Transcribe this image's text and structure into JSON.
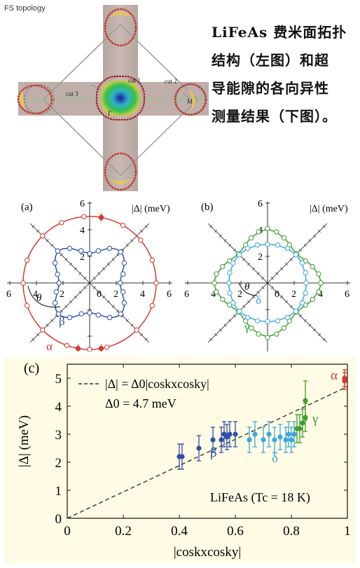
{
  "top": {
    "fs_title": "FS topology",
    "cut_labels": [
      "cut 1",
      "cut 2",
      "cut 3"
    ],
    "point_labels": [
      "Γ",
      "M"
    ],
    "caption_lines": [
      "LiFeAs 费米面拓扑",
      "结构（左图）和超",
      "导能隙的各向异性",
      "测量结果（下图）。"
    ]
  },
  "colors": {
    "alpha": "#d63a2f",
    "beta": "#2f4fa8",
    "delta": "#3aa7e0",
    "gamma": "#3f9e2f",
    "guide": "#333333"
  },
  "chart_data": [
    {
      "type": "polar",
      "panel": "(a)",
      "radial_label": "|Δ| (meV)",
      "ticks": [
        2,
        4,
        6
      ],
      "angle_label": "θ",
      "series": [
        {
          "name": "α",
          "fit_radius": 5,
          "points": [
            [
              95,
              5
            ],
            [
              80,
              5
            ],
            [
              60,
              5
            ],
            [
              40,
              5
            ],
            [
              20,
              5
            ],
            [
              0,
              5
            ],
            [
              -20,
              5
            ],
            [
              -45,
              5
            ],
            [
              -75,
              5
            ],
            [
              -90,
              5
            ],
            [
              -110,
              5
            ],
            [
              -135,
              5
            ],
            [
              -160,
              5
            ],
            [
              180,
              5
            ],
            [
              160,
              5
            ],
            [
              135,
              5
            ],
            [
              115,
              5
            ]
          ],
          "filled_angles": [
            -80,
            -100,
            80
          ]
        },
        {
          "name": "β",
          "fit_shape": [
            [
              0,
              2.3
            ],
            [
              30,
              3.0
            ],
            [
              45,
              3.3
            ],
            [
              60,
              3.0
            ],
            [
              90,
              2.25
            ],
            [
              120,
              3.0
            ],
            [
              135,
              3.35
            ],
            [
              150,
              3.0
            ],
            [
              180,
              2.3
            ],
            [
              210,
              3.0
            ],
            [
              225,
              3.3
            ],
            [
              240,
              3.0
            ],
            [
              270,
              2.25
            ],
            [
              300,
              3.0
            ],
            [
              315,
              3.3
            ],
            [
              330,
              3.0
            ]
          ],
          "points": [
            [
              0,
              2.3
            ],
            [
              15,
              2.6
            ],
            [
              30,
              3.0
            ],
            [
              45,
              3.3
            ],
            [
              60,
              3.0
            ],
            [
              75,
              2.5
            ],
            [
              90,
              2.2
            ],
            [
              105,
              2.5
            ],
            [
              120,
              3.0
            ],
            [
              135,
              3.4
            ],
            [
              150,
              3.0
            ],
            [
              165,
              2.5
            ],
            [
              180,
              2.3
            ],
            [
              195,
              2.6
            ],
            [
              210,
              3.0
            ],
            [
              225,
              3.3
            ],
            [
              240,
              3.0
            ],
            [
              255,
              2.4
            ],
            [
              270,
              2.25
            ],
            [
              285,
              2.5
            ],
            [
              300,
              3.0
            ],
            [
              315,
              3.3
            ],
            [
              330,
              3.0
            ],
            [
              345,
              2.6
            ]
          ]
        }
      ]
    },
    {
      "type": "polar",
      "panel": "(b)",
      "radial_label": "|Δ| (meV)",
      "ticks": [
        2,
        4,
        6
      ],
      "angle_label": "θ",
      "series": [
        {
          "name": "γ",
          "fit_shape": [
            [
              0,
              4.0
            ],
            [
              20,
              3.6
            ],
            [
              45,
              3.1
            ],
            [
              70,
              3.6
            ],
            [
              90,
              4.0
            ],
            [
              110,
              3.6
            ],
            [
              135,
              3.1
            ],
            [
              160,
              3.6
            ],
            [
              180,
              4.0
            ],
            [
              200,
              3.6
            ],
            [
              225,
              3.1
            ],
            [
              250,
              3.6
            ],
            [
              270,
              4.0
            ],
            [
              290,
              3.6
            ],
            [
              315,
              3.1
            ],
            [
              340,
              3.6
            ]
          ],
          "points": [
            [
              0,
              4.0
            ],
            [
              10,
              3.9
            ],
            [
              20,
              3.6
            ],
            [
              30,
              3.3
            ],
            [
              45,
              3.1
            ],
            [
              60,
              3.3
            ],
            [
              70,
              3.6
            ],
            [
              80,
              3.9
            ],
            [
              90,
              4.1
            ],
            [
              100,
              3.9
            ],
            [
              110,
              3.6
            ],
            [
              120,
              3.3
            ],
            [
              135,
              3.1
            ],
            [
              150,
              3.3
            ],
            [
              160,
              3.6
            ],
            [
              170,
              3.9
            ],
            [
              180,
              4.0
            ],
            [
              190,
              3.9
            ],
            [
              200,
              3.6
            ],
            [
              210,
              3.3
            ],
            [
              225,
              3.1
            ],
            [
              240,
              3.3
            ],
            [
              250,
              3.6
            ],
            [
              260,
              3.9
            ],
            [
              270,
              4.1
            ],
            [
              280,
              3.9
            ],
            [
              290,
              3.6
            ],
            [
              300,
              3.3
            ],
            [
              315,
              3.1
            ],
            [
              330,
              3.3
            ],
            [
              340,
              3.6
            ],
            [
              350,
              3.9
            ]
          ]
        },
        {
          "name": "δ",
          "fit_shape": [
            [
              0,
              2.9
            ],
            [
              45,
              3.0
            ],
            [
              90,
              2.9
            ],
            [
              135,
              3.0
            ],
            [
              180,
              2.9
            ],
            [
              225,
              3.0
            ],
            [
              270,
              2.9
            ],
            [
              315,
              3.0
            ]
          ],
          "points": [
            [
              0,
              2.9
            ],
            [
              15,
              2.95
            ],
            [
              30,
              3.0
            ],
            [
              45,
              3.0
            ],
            [
              60,
              3.0
            ],
            [
              75,
              2.95
            ],
            [
              90,
              2.9
            ],
            [
              105,
              2.95
            ],
            [
              120,
              3.0
            ],
            [
              135,
              3.0
            ],
            [
              150,
              3.0
            ],
            [
              165,
              2.95
            ],
            [
              180,
              2.9
            ],
            [
              195,
              2.95
            ],
            [
              210,
              3.0
            ],
            [
              225,
              3.0
            ],
            [
              240,
              3.0
            ],
            [
              255,
              2.95
            ],
            [
              270,
              2.9
            ],
            [
              285,
              2.95
            ],
            [
              300,
              3.0
            ],
            [
              315,
              3.0
            ],
            [
              330,
              3.0
            ],
            [
              345,
              2.95
            ]
          ]
        }
      ]
    },
    {
      "type": "scatter",
      "panel": "(c)",
      "xlabel": "|coskxcosky|",
      "ylabel": "|Δ| (meV)",
      "xlim": [
        0,
        1
      ],
      "ylim": [
        0,
        5.5
      ],
      "x_ticks": [
        0,
        0.2,
        0.4,
        0.6,
        0.8,
        1
      ],
      "y_ticks": [
        0,
        1,
        2,
        3,
        4,
        5
      ],
      "legend_line1": "|Δ| = Δ0|coskxcosky|",
      "legend_line2": "Δ0 = 4.7 meV",
      "annotation": "LiFeAs (Tc = 18 K)",
      "fit": {
        "slope": 4.7
      },
      "series": [
        {
          "name": "β",
          "points": [
            [
              0.4,
              2.2,
              0.45
            ],
            [
              0.41,
              2.2,
              0.45
            ],
            [
              0.47,
              2.5,
              0.45
            ],
            [
              0.52,
              2.8,
              0.45
            ],
            [
              0.55,
              2.8,
              0.45
            ],
            [
              0.56,
              3.0,
              0.45
            ],
            [
              0.57,
              2.9,
              0.45
            ],
            [
              0.58,
              3.0,
              0.45
            ],
            [
              0.6,
              3.0,
              0.45
            ]
          ]
        },
        {
          "name": "δ",
          "points": [
            [
              0.65,
              2.8,
              0.45
            ],
            [
              0.67,
              3.0,
              0.45
            ],
            [
              0.7,
              2.8,
              0.45
            ],
            [
              0.72,
              3.0,
              0.45
            ],
            [
              0.74,
              2.8,
              0.45
            ],
            [
              0.76,
              2.9,
              0.45
            ],
            [
              0.78,
              2.8,
              0.45
            ],
            [
              0.79,
              3.0,
              0.45
            ],
            [
              0.8,
              2.8,
              0.45
            ],
            [
              0.81,
              3.0,
              0.45
            ]
          ]
        },
        {
          "name": "γ",
          "points": [
            [
              0.82,
              3.2,
              0.5
            ],
            [
              0.83,
              3.2,
              0.5
            ],
            [
              0.84,
              3.4,
              0.5
            ],
            [
              0.85,
              3.6,
              0.5
            ],
            [
              0.85,
              4.2,
              0.7
            ]
          ]
        },
        {
          "name": "α",
          "points": [
            [
              0.99,
              5.0,
              0.3
            ],
            [
              0.99,
              4.9,
              0.3
            ]
          ]
        }
      ]
    }
  ]
}
